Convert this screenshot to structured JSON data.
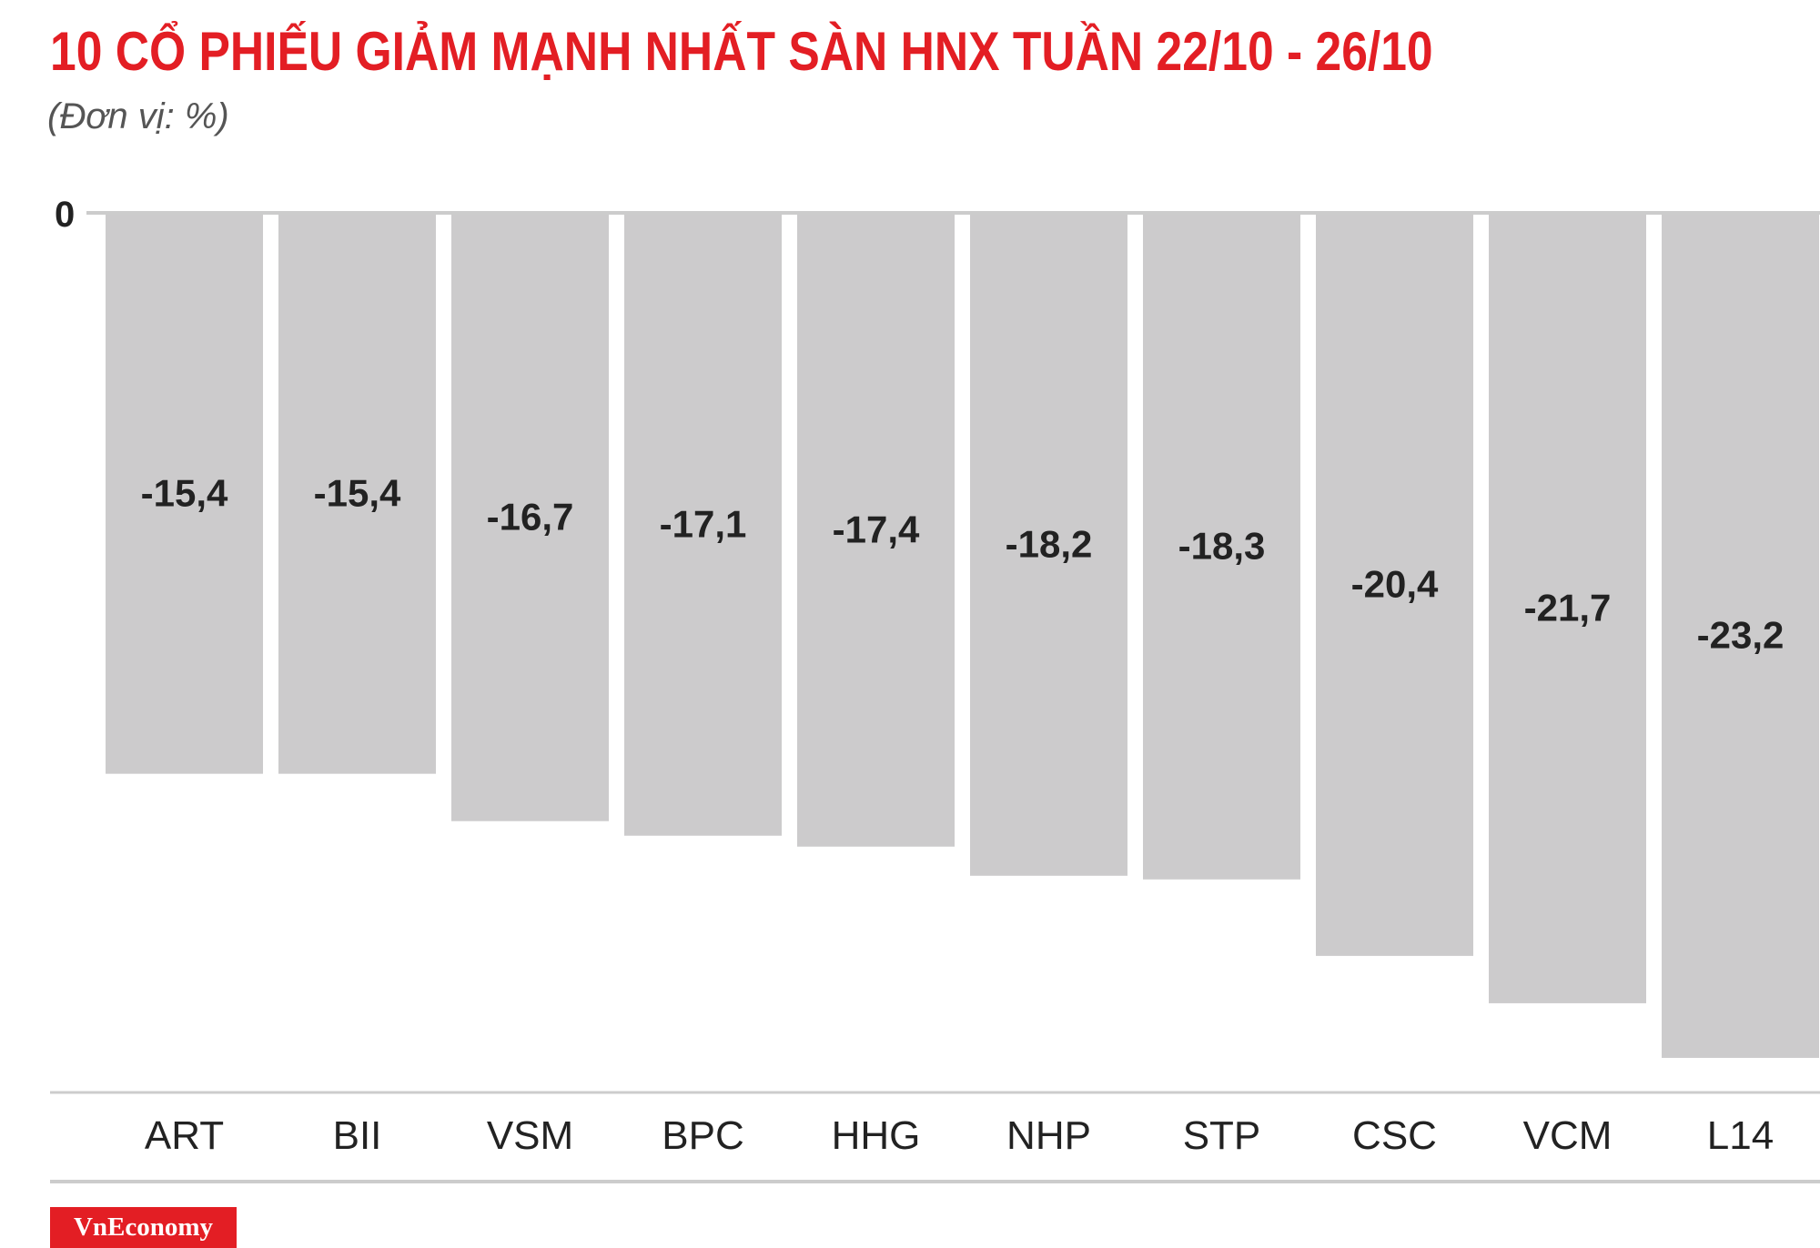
{
  "title": "10 CỔ PHIẾU GIẢM MẠNH NHẤT SÀN HNX TUẦN 22/10 - 26/10",
  "subtitle": "(Đơn vị: %)",
  "logo": "VnEconomy",
  "colors": {
    "title": "#e31e24",
    "bar": "#cccbcc",
    "label": "#222222",
    "axis": "#cccccc",
    "logo_bg": "#e31e24"
  },
  "chart_data": {
    "type": "bar",
    "orientation": "vertical",
    "categories": [
      "ART",
      "BII",
      "VSM",
      "BPC",
      "HHG",
      "NHP",
      "STP",
      "CSC",
      "VCM",
      "L14"
    ],
    "values": [
      -15.4,
      -15.4,
      -16.7,
      -17.1,
      -17.4,
      -18.2,
      -18.3,
      -20.4,
      -21.7,
      -23.2
    ],
    "value_labels": [
      "-15,4",
      "-15,4",
      "-16,7",
      "-17,1",
      "-17,4",
      "-18,2",
      "-18,3",
      "-20,4",
      "-21,7",
      "-23,2"
    ],
    "y_ticks": [
      "0"
    ],
    "ylim": [
      -23.2,
      0
    ],
    "title": "10 CỔ PHIẾU GIẢM MẠNH NHẤT SÀN HNX TUẦN 22/10 - 26/10",
    "xlabel": "",
    "ylabel": "",
    "grid": false,
    "legend": "none"
  }
}
